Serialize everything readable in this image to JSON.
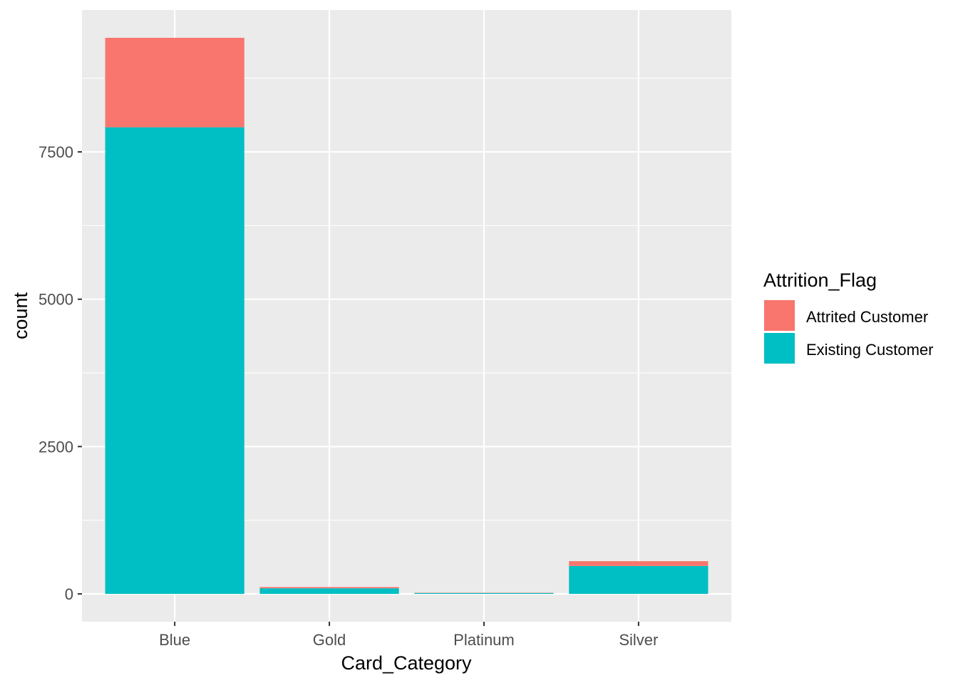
{
  "chart_data": {
    "type": "bar",
    "stacked": true,
    "title": "",
    "xlabel": "Card_Category",
    "ylabel": "count",
    "categories": [
      "Blue",
      "Gold",
      "Platinum",
      "Silver"
    ],
    "series": [
      {
        "name": "Attrited Customer",
        "color": "#F8766D",
        "values": [
          1519,
          21,
          5,
          82
        ]
      },
      {
        "name": "Existing Customer",
        "color": "#00BFC4",
        "values": [
          7917,
          95,
          15,
          473
        ]
      }
    ],
    "yticks": [
      0,
      2500,
      5000,
      7500
    ],
    "ytick_labels": [
      "0",
      "2500",
      "5000",
      "7500"
    ],
    "yminor": [
      1250,
      3750,
      6250,
      8750
    ],
    "ylim": [
      -472,
      9908
    ],
    "grid": true,
    "legend": {
      "title": "Attrition_Flag",
      "position": "right"
    },
    "colors": {
      "panel": "#EBEBEB",
      "grid": "#FFFFFF",
      "axis_text": "#4D4D4D"
    }
  }
}
